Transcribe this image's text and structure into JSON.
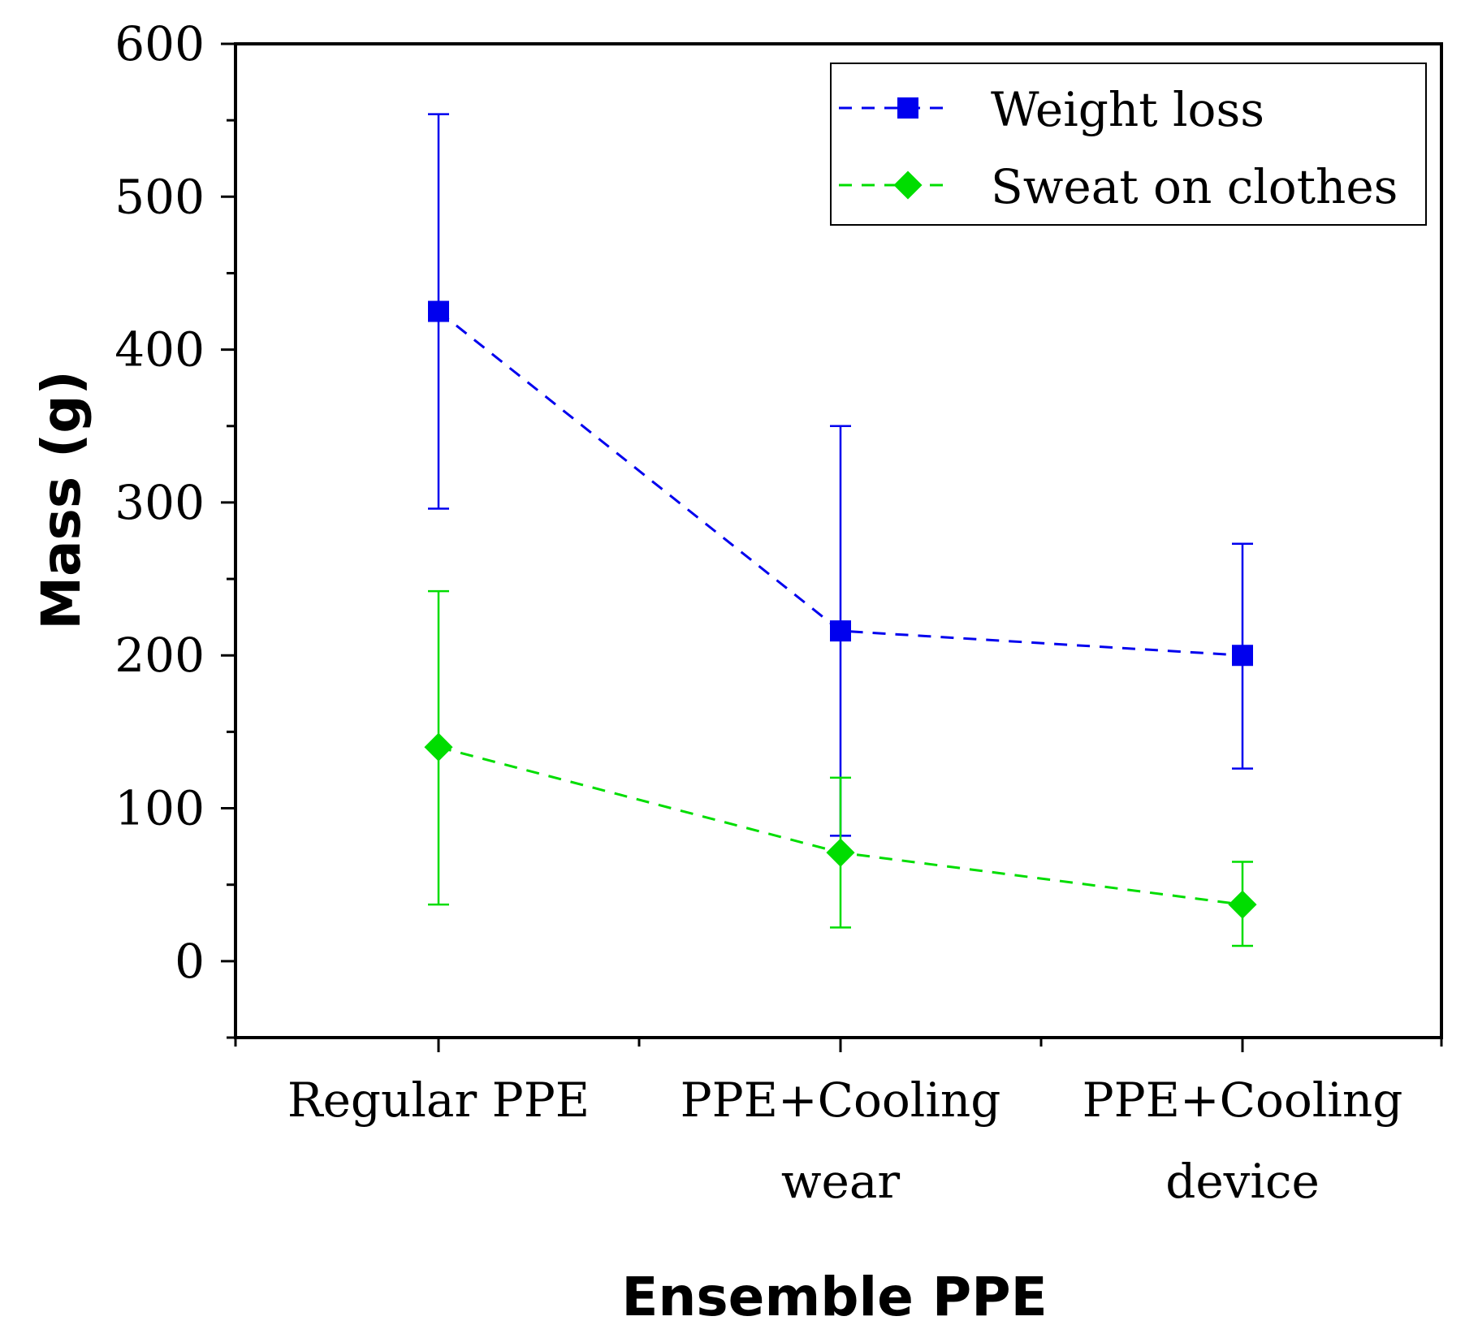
{
  "chart_data": {
    "type": "line",
    "title": "",
    "xlabel": "Ensemble PPE",
    "ylabel": "Mass (g)",
    "categories": [
      [
        "Regular PPE"
      ],
      [
        "PPE+Cooling",
        "wear"
      ],
      [
        "PPE+Cooling",
        "device"
      ]
    ],
    "ylim": [
      -50,
      600
    ],
    "yticks": [
      0,
      100,
      200,
      300,
      400,
      500,
      600
    ],
    "grid": false,
    "legend_position": "top-right",
    "series": [
      {
        "name": "Weight loss",
        "color": "#0000ee",
        "marker": "square",
        "line": "dashed",
        "values": [
          425,
          216,
          200
        ],
        "error_low": [
          296,
          82,
          126
        ],
        "error_high": [
          554,
          350,
          273
        ]
      },
      {
        "name": "Sweat on clothes",
        "color": "#00dd00",
        "marker": "diamond",
        "line": "dashed",
        "values": [
          140,
          71,
          37
        ],
        "error_low": [
          37,
          22,
          10
        ],
        "error_high": [
          242,
          120,
          65
        ]
      }
    ]
  }
}
